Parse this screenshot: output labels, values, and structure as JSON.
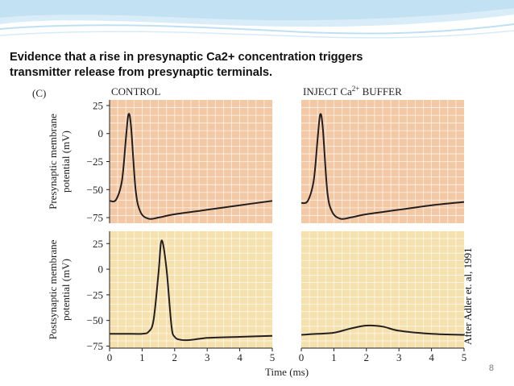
{
  "slide": {
    "title": "Evidence that a rise in presynaptic Ca2+ concentration triggers\ntransmitter release from presynaptic terminals.",
    "credit": "After Adler et. al, 1991",
    "page_number": "8",
    "panel_label": "(C)",
    "colors": {
      "presynaptic_bg": "#f3c9a5",
      "postsynaptic_bg": "#f5e1ad",
      "grid": "#ffffff",
      "trace": "#231f20",
      "banner": "#cfe6f4"
    }
  },
  "chart_data": [
    {
      "type": "line",
      "title": "CONTROL",
      "xlabel": "",
      "ylabel": "Presynaptic membrane potential (mV)",
      "xlim": [
        0,
        5
      ],
      "ylim": [
        -80,
        30
      ],
      "yticks": [
        25,
        0,
        -25,
        -50,
        -75
      ],
      "grid": true,
      "series": [
        {
          "x": [
            0,
            0.2,
            0.38,
            0.5,
            0.58,
            0.66,
            0.8,
            0.95,
            1.2,
            1.5,
            2.0,
            3.0,
            4.0,
            5.0
          ],
          "y": [
            -60,
            -59,
            -42,
            -5,
            17,
            6,
            -50,
            -70,
            -76,
            -75,
            -72,
            -68,
            -64,
            -60
          ]
        }
      ]
    },
    {
      "type": "line",
      "title": "INJECT Ca2+ BUFFER",
      "xlabel": "",
      "ylabel": "",
      "xlim": [
        0,
        5
      ],
      "ylim": [
        -80,
        30
      ],
      "yticks": [],
      "grid": true,
      "series": [
        {
          "x": [
            0,
            0.2,
            0.38,
            0.5,
            0.58,
            0.66,
            0.8,
            0.95,
            1.2,
            1.5,
            2.0,
            3.0,
            4.0,
            5.0
          ],
          "y": [
            -62,
            -60,
            -42,
            -5,
            17,
            5,
            -52,
            -70,
            -76,
            -75,
            -72,
            -68,
            -64,
            -61
          ]
        }
      ]
    },
    {
      "type": "line",
      "title": "",
      "xlabel": "Time (ms)",
      "ylabel": "Postsynaptic membrane potential (mV)",
      "xlim": [
        0,
        5
      ],
      "ylim": [
        -77,
        37
      ],
      "xticks": [
        0,
        1,
        2,
        3,
        4,
        5
      ],
      "yticks": [
        25,
        0,
        -25,
        -50,
        -75
      ],
      "grid": true,
      "series": [
        {
          "x": [
            0,
            0.5,
            1.0,
            1.2,
            1.35,
            1.5,
            1.6,
            1.75,
            1.9,
            2.0,
            2.2,
            2.5,
            3.0,
            4.0,
            5.0
          ],
          "y": [
            -63,
            -63,
            -63,
            -61,
            -50,
            -5,
            28,
            0,
            -55,
            -66,
            -69,
            -69,
            -67,
            -66,
            -65
          ]
        }
      ]
    },
    {
      "type": "line",
      "title": "",
      "xlabel": "",
      "ylabel": "",
      "xlim": [
        0,
        5
      ],
      "ylim": [
        -77,
        37
      ],
      "xticks": [
        0,
        1,
        2,
        3,
        4,
        5
      ],
      "yticks": [],
      "grid": true,
      "series": [
        {
          "x": [
            0,
            0.5,
            1.0,
            1.5,
            2.0,
            2.5,
            3.0,
            4.0,
            5.0
          ],
          "y": [
            -64,
            -63,
            -62,
            -58,
            -55,
            -56,
            -60,
            -63,
            -64
          ]
        }
      ]
    }
  ]
}
